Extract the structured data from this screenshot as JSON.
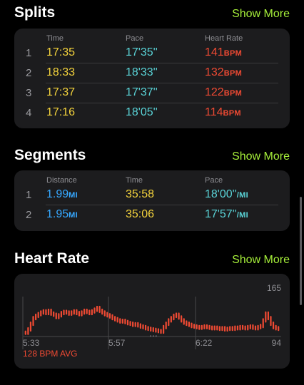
{
  "splits": {
    "title": "Splits",
    "show_more": "Show More",
    "headers": {
      "time": "Time",
      "pace": "Pace",
      "heart_rate": "Heart Rate"
    },
    "rows": [
      {
        "index": "1",
        "time": "17:35",
        "pace": "17'35''",
        "hr": "141",
        "hr_unit": "BPM"
      },
      {
        "index": "2",
        "time": "18:33",
        "pace": "18'33''",
        "hr": "132",
        "hr_unit": "BPM"
      },
      {
        "index": "3",
        "time": "17:37",
        "pace": "17'37''",
        "hr": "122",
        "hr_unit": "BPM"
      },
      {
        "index": "4",
        "time": "17:16",
        "pace": "18'05''",
        "hr": "114",
        "hr_unit": "BPM"
      }
    ]
  },
  "segments": {
    "title": "Segments",
    "show_more": "Show More",
    "headers": {
      "distance": "Distance",
      "time": "Time",
      "pace": "Pace"
    },
    "rows": [
      {
        "index": "1",
        "distance": "1.99",
        "distance_unit": "MI",
        "time": "35:58",
        "pace": "18'00''",
        "pace_unit": "/MI"
      },
      {
        "index": "2",
        "distance": "1.95",
        "distance_unit": "MI",
        "time": "35:06",
        "pace": "17'57''",
        "pace_unit": "/MI"
      }
    ]
  },
  "heart_rate": {
    "title": "Heart Rate",
    "show_more": "Show More",
    "max_label": "165",
    "min_label": "94",
    "x_labels": [
      "5:33",
      "5:57",
      "6:22"
    ],
    "avg_label": "128 BPM AVG",
    "gap_indicator": "...",
    "colors": {
      "line": "#f04a33",
      "grid": "#48484a"
    }
  },
  "chart_data": {
    "type": "bar",
    "title": "Heart Rate",
    "ylim": [
      94,
      165
    ],
    "x_ticks": [
      "5:33",
      "5:57",
      "6:22"
    ],
    "average": 128,
    "values": [
      102,
      108,
      118,
      128,
      132,
      135,
      138,
      140,
      137,
      141,
      136,
      134,
      130,
      133,
      137,
      139,
      138,
      136,
      138,
      140,
      137,
      135,
      138,
      141,
      139,
      137,
      140,
      143,
      146,
      141,
      138,
      135,
      133,
      131,
      128,
      126,
      124,
      122,
      123,
      121,
      119,
      118,
      116,
      117,
      115,
      113,
      112,
      110,
      109,
      108,
      107,
      106,
      105,
      104,
      112,
      118,
      124,
      128,
      132,
      134,
      129,
      124,
      120,
      118,
      116,
      114,
      113,
      112,
      111,
      112,
      113,
      112,
      111,
      110,
      111,
      110,
      109,
      110,
      108,
      109,
      110,
      109,
      111,
      110,
      112,
      111,
      110,
      112,
      113,
      111,
      110,
      112,
      114,
      124,
      136,
      128,
      118,
      112,
      110,
      109
    ]
  }
}
